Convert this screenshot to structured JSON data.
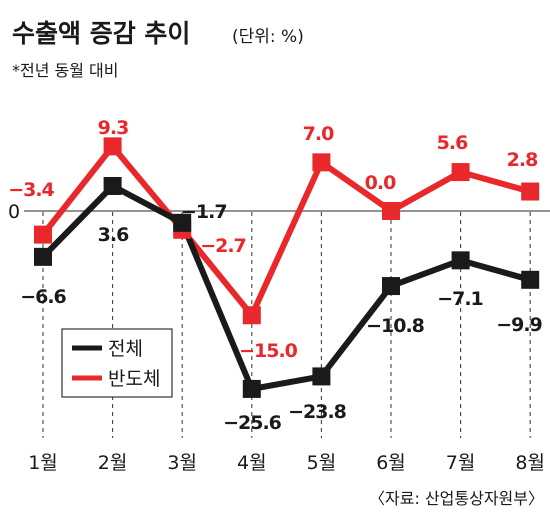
{
  "title": "수출액 증감 추이",
  "unit": "(단위: %)",
  "subtitle": "*전년 동월 대비",
  "zero_label": "0",
  "source": "〈자료: 산업통상자원부〉",
  "legend": [
    "전체",
    "반도체"
  ],
  "colors": {
    "total": "#1a1a1a",
    "semiconductor": "#e8282b",
    "axis": "#555555",
    "grid": "#444444"
  },
  "chart_data": {
    "type": "line",
    "categories": [
      "1월",
      "2월",
      "3월",
      "4월",
      "5월",
      "6월",
      "7월",
      "8월"
    ],
    "series": [
      {
        "name": "전체",
        "values": [
          -6.6,
          3.6,
          -1.7,
          -25.6,
          -23.8,
          -10.8,
          -7.1,
          -9.9
        ],
        "labels": [
          "-6.6",
          "3.6",
          "-1.7",
          "-25.6",
          "-23.8",
          "-10.8",
          "-7.1",
          "-9.9"
        ]
      },
      {
        "name": "반도체",
        "values": [
          -3.4,
          9.3,
          -2.7,
          -15.0,
          7.0,
          0.0,
          5.6,
          2.8
        ],
        "labels": [
          "-3.4",
          "9.3",
          "-2.7",
          "-15.0",
          "7.0",
          "0.0",
          "5.6",
          "2.8"
        ]
      }
    ],
    "xlabel": "",
    "ylabel": "",
    "ylim": [
      -30,
      12
    ],
    "grid": false,
    "legend_position": "bottom-left"
  }
}
